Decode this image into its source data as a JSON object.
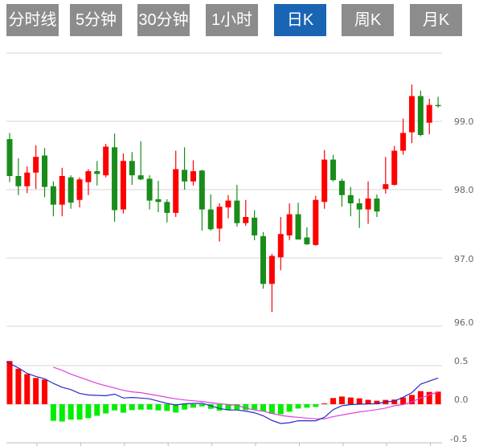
{
  "tabs": [
    {
      "label": "分时线",
      "active": false
    },
    {
      "label": "5分钟",
      "active": false
    },
    {
      "label": "30分钟",
      "active": false
    },
    {
      "label": "1小时",
      "active": false
    },
    {
      "label": "日K",
      "active": true
    },
    {
      "label": "周K",
      "active": false
    },
    {
      "label": "月K",
      "active": false
    }
  ],
  "colors": {
    "active_tab": "#1a64b4",
    "tab": "#8c8c8c",
    "up": "#ff0000",
    "down": "#1a8c1a",
    "macd_up": "#ff0000",
    "macd_down": "#00ee00",
    "dif_line": "#2a2ac8",
    "dea_line": "#e040e0"
  },
  "chart_data": [
    {
      "type": "candlestick",
      "ylim": [
        96.0,
        100.0
      ],
      "yticks": [
        99.0,
        98.0,
        97.0,
        96.0
      ],
      "ytick_labels": [
        "99.0",
        "98.0",
        "97.0",
        "96.0"
      ],
      "grid": true,
      "candles_ohlc": [
        [
          98.74,
          98.83,
          98.11,
          98.2
        ],
        [
          98.2,
          98.46,
          97.92,
          98.05
        ],
        [
          98.05,
          98.34,
          97.95,
          98.25
        ],
        [
          98.25,
          98.65,
          98.01,
          98.48
        ],
        [
          98.5,
          98.61,
          97.89,
          98.04
        ],
        [
          98.05,
          98.12,
          97.61,
          97.78
        ],
        [
          97.78,
          98.32,
          97.61,
          98.2
        ],
        [
          98.18,
          98.21,
          97.72,
          97.81
        ],
        [
          97.85,
          98.18,
          97.74,
          98.15
        ],
        [
          98.11,
          98.3,
          97.92,
          98.27
        ],
        [
          98.27,
          98.42,
          98.06,
          98.23
        ],
        [
          98.21,
          98.67,
          98.18,
          98.63
        ],
        [
          98.62,
          98.82,
          97.53,
          97.7
        ],
        [
          97.71,
          98.53,
          97.65,
          98.42
        ],
        [
          98.42,
          98.55,
          98.07,
          98.21
        ],
        [
          98.21,
          98.71,
          98.14,
          98.15
        ],
        [
          98.16,
          98.21,
          97.71,
          97.84
        ],
        [
          97.86,
          98.13,
          97.67,
          97.82
        ],
        [
          97.82,
          97.86,
          97.52,
          97.66
        ],
        [
          97.66,
          98.57,
          97.6,
          98.3
        ],
        [
          98.29,
          98.62,
          98.0,
          98.12
        ],
        [
          98.12,
          98.43,
          98.06,
          98.27
        ],
        [
          98.28,
          98.29,
          97.4,
          97.71
        ],
        [
          97.71,
          97.93,
          97.4,
          97.42
        ],
        [
          97.43,
          97.8,
          97.24,
          97.75
        ],
        [
          97.74,
          97.92,
          97.58,
          97.84
        ],
        [
          97.84,
          98.07,
          97.46,
          97.51
        ],
        [
          97.51,
          97.85,
          97.47,
          97.6
        ],
        [
          97.59,
          97.7,
          97.26,
          97.33
        ],
        [
          97.32,
          97.38,
          96.55,
          96.62
        ],
        [
          96.62,
          97.06,
          96.21,
          97.03
        ],
        [
          97.01,
          97.6,
          96.82,
          97.35
        ],
        [
          97.33,
          97.8,
          97.26,
          97.64
        ],
        [
          97.64,
          97.81,
          97.27,
          97.27
        ],
        [
          97.3,
          97.45,
          97.19,
          97.2
        ],
        [
          97.19,
          97.91,
          97.18,
          97.85
        ],
        [
          97.82,
          98.58,
          97.72,
          98.44
        ],
        [
          98.44,
          98.51,
          98.12,
          98.14
        ],
        [
          98.13,
          98.16,
          97.75,
          97.92
        ],
        [
          97.92,
          98.04,
          97.61,
          97.8
        ],
        [
          97.8,
          97.87,
          97.44,
          97.71
        ],
        [
          97.71,
          98.12,
          97.5,
          97.87
        ],
        [
          97.87,
          97.93,
          97.6,
          97.68
        ],
        [
          98.01,
          98.48,
          97.94,
          98.08
        ],
        [
          98.07,
          98.64,
          98.06,
          98.57
        ],
        [
          98.57,
          99.04,
          98.51,
          98.83
        ],
        [
          98.84,
          99.54,
          98.68,
          99.37
        ],
        [
          99.37,
          99.45,
          98.78,
          98.8
        ],
        [
          98.98,
          99.33,
          98.81,
          99.24
        ],
        [
          99.24,
          99.36,
          99.2,
          99.23
        ]
      ]
    },
    {
      "type": "bar+line",
      "ylim": [
        -0.5,
        0.5
      ],
      "yticks": [
        0.5,
        0.0,
        -0.5
      ],
      "ytick_labels": [
        "0.5",
        "0.0",
        "-0.5"
      ],
      "histogram": [
        0.56,
        0.46,
        0.39,
        0.34,
        0.32,
        -0.215,
        -0.225,
        -0.2,
        -0.2,
        -0.18,
        -0.15,
        -0.12,
        -0.08,
        -0.11,
        -0.076,
        -0.07,
        -0.07,
        -0.08,
        -0.087,
        -0.108,
        -0.07,
        -0.045,
        -0.028,
        -0.06,
        -0.083,
        -0.076,
        -0.07,
        -0.076,
        -0.07,
        -0.09,
        -0.125,
        -0.13,
        -0.097,
        -0.056,
        -0.045,
        -0.035,
        0.01,
        0.08,
        0.1,
        0.087,
        0.076,
        0.056,
        0.045,
        0.056,
        0.06,
        0.087,
        0.12,
        0.17,
        0.16,
        0.163
      ],
      "dif": [
        0.55,
        0.47,
        0.4,
        0.36,
        0.33,
        0.27,
        0.22,
        0.19,
        0.14,
        0.12,
        0.115,
        0.11,
        0.13,
        0.08,
        0.087,
        0.08,
        0.07,
        0.04,
        0.01,
        -0.01,
        0.005,
        0.01,
        0.014,
        -0.02,
        -0.055,
        -0.075,
        -0.075,
        -0.09,
        -0.11,
        -0.15,
        -0.21,
        -0.25,
        -0.24,
        -0.215,
        -0.215,
        -0.215,
        -0.17,
        -0.07,
        -0.02,
        -0.005,
        0.0,
        0.003,
        0.007,
        0.03,
        0.04,
        0.09,
        0.15,
        0.26,
        0.3,
        0.34
      ],
      "dea": [
        null,
        null,
        null,
        null,
        null,
        0.48,
        0.44,
        0.39,
        0.35,
        0.31,
        0.27,
        0.24,
        0.21,
        0.18,
        0.16,
        0.15,
        0.13,
        0.11,
        0.09,
        0.07,
        0.055,
        0.045,
        0.035,
        0.02,
        0.007,
        -0.005,
        -0.015,
        -0.05,
        -0.075,
        -0.09,
        -0.12,
        -0.145,
        -0.16,
        -0.17,
        -0.18,
        -0.19,
        -0.19,
        -0.16,
        -0.14,
        -0.12,
        -0.1,
        -0.085,
        -0.07,
        -0.05,
        -0.02,
        -0.005,
        0.03,
        0.08,
        0.12,
        0.16
      ]
    }
  ]
}
